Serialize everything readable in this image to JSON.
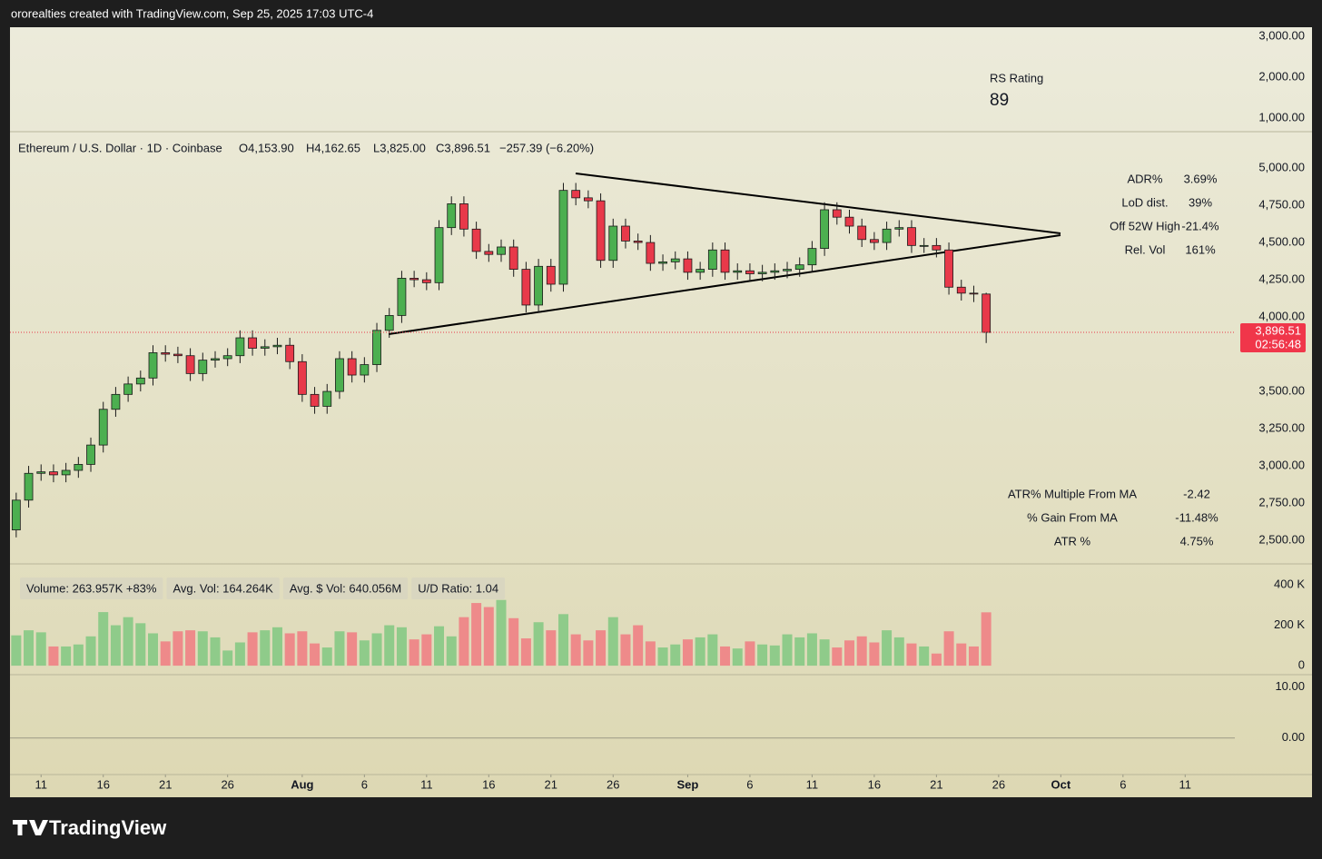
{
  "header": {
    "text": "ororealties created with TradingView.com, Sep 25, 2025 17:03 UTC-4"
  },
  "footer": {
    "logo": "TradingView"
  },
  "legend": {
    "symbol": "Ethereum / U.S. Dollar · 1D · Coinbase",
    "open": "O4,153.90",
    "high": "H4,162.65",
    "low": "L3,825.00",
    "close": "C3,896.51",
    "change": "−257.39 (−6.20%)"
  },
  "price_tag": {
    "price": "3,896.51",
    "timer": "02:56:48"
  },
  "rs": {
    "label": "RS Rating",
    "value": "89"
  },
  "stats_top": [
    [
      "ADR%",
      "3.69%"
    ],
    [
      "LoD dist.",
      "39%"
    ],
    [
      "Off 52W High",
      "-21.4%"
    ],
    [
      "Rel. Vol",
      "161%"
    ]
  ],
  "stats_bottom": [
    [
      "ATR% Multiple From MA",
      "-2.42"
    ],
    [
      "% Gain From MA",
      "-11.48%"
    ],
    [
      "ATR %",
      "4.75%"
    ]
  ],
  "volume_info": [
    "Volume: 263.957K +83%",
    "Avg. Vol: 164.264K",
    "Avg. $ Vol: 640.056M",
    "U/D Ratio: 1.04"
  ],
  "chart_data": [
    {
      "type": "line",
      "ylim": [
        733,
        3222
      ],
      "yticks": [
        {
          "value": 3000,
          "label": "3,000.00"
        },
        {
          "value": 2000,
          "label": "2,000.00"
        },
        {
          "value": 1000,
          "label": "1,000.00"
        }
      ]
    },
    {
      "type": "candlestick",
      "up_color": "#4caf50",
      "down_color": "#e8394a",
      "xlim": [
        -0.5,
        104.2
      ],
      "ylim": [
        2348,
        5226
      ],
      "xticks": [
        {
          "value": 2,
          "label": "11"
        },
        {
          "value": 7,
          "label": "16"
        },
        {
          "value": 12,
          "label": "21"
        },
        {
          "value": 17,
          "label": "26"
        },
        {
          "value": 23,
          "label": "Aug"
        },
        {
          "value": 28,
          "label": "6"
        },
        {
          "value": 33,
          "label": "11"
        },
        {
          "value": 38,
          "label": "16"
        },
        {
          "value": 43,
          "label": "21"
        },
        {
          "value": 48,
          "label": "26"
        },
        {
          "value": 54,
          "label": "Sep"
        },
        {
          "value": 59,
          "label": "6"
        },
        {
          "value": 64,
          "label": "11"
        },
        {
          "value": 69,
          "label": "16"
        },
        {
          "value": 74,
          "label": "21"
        },
        {
          "value": 79,
          "label": "26"
        },
        {
          "value": 84,
          "label": "Oct"
        },
        {
          "value": 89,
          "label": "6"
        },
        {
          "value": 94,
          "label": "11"
        }
      ],
      "yticks": [
        {
          "value": 5000,
          "label": "5,000.00"
        },
        {
          "value": 4750,
          "label": "4,750.00"
        },
        {
          "value": 4500,
          "label": "4,500.00"
        },
        {
          "value": 4250,
          "label": "4,250.00"
        },
        {
          "value": 4000,
          "label": "4,000.00"
        },
        {
          "value": 3500,
          "label": "3,500.00"
        },
        {
          "value": 3250,
          "label": "3,250.00"
        },
        {
          "value": 3000,
          "label": "3,000.00"
        },
        {
          "value": 2750,
          "label": "2,750.00"
        },
        {
          "value": 2500,
          "label": "2,500.00"
        }
      ],
      "open": [
        2570,
        2770,
        2950,
        2960,
        2940,
        2970,
        3010,
        3140,
        3380,
        3480,
        3550,
        3590,
        3760,
        3750,
        3740,
        3620,
        3710,
        3720,
        3740,
        3860,
        3790,
        3800,
        3810,
        3700,
        3480,
        3400,
        3500,
        3720,
        3610,
        3680,
        3910,
        4010,
        4260,
        4250,
        4230,
        4600,
        4760,
        4590,
        4440,
        4420,
        4470,
        4320,
        4080,
        4340,
        4220,
        4850,
        4800,
        4780,
        4380,
        4610,
        4510,
        4500,
        4360,
        4370,
        4390,
        4300,
        4320,
        4450,
        4300,
        4310,
        4290,
        4300,
        4310,
        4320,
        4350,
        4460,
        4720,
        4670,
        4610,
        4520,
        4500,
        4590,
        4600,
        4480,
        4480,
        4450,
        4200,
        4160,
        4153.9
      ],
      "high": [
        2820,
        3000,
        3010,
        3010,
        3020,
        3060,
        3190,
        3430,
        3530,
        3600,
        3640,
        3810,
        3810,
        3800,
        3790,
        3760,
        3770,
        3790,
        3910,
        3910,
        3850,
        3860,
        3860,
        3750,
        3530,
        3550,
        3770,
        3770,
        3730,
        3960,
        4060,
        4310,
        4310,
        4300,
        4650,
        4810,
        4810,
        4640,
        4490,
        4520,
        4520,
        4370,
        4390,
        4390,
        4900,
        4900,
        4850,
        4830,
        4660,
        4660,
        4560,
        4550,
        4420,
        4440,
        4440,
        4370,
        4500,
        4500,
        4360,
        4360,
        4350,
        4360,
        4370,
        4400,
        4510,
        4770,
        4770,
        4720,
        4660,
        4570,
        4640,
        4650,
        4650,
        4530,
        4530,
        4500,
        4250,
        4210,
        4162.65
      ],
      "low": [
        2520,
        2720,
        2900,
        2890,
        2890,
        2920,
        2960,
        3090,
        3330,
        3430,
        3500,
        3540,
        3700,
        3690,
        3570,
        3570,
        3660,
        3670,
        3690,
        3740,
        3740,
        3750,
        3650,
        3430,
        3350,
        3350,
        3450,
        3560,
        3560,
        3630,
        3860,
        3960,
        4200,
        4180,
        4180,
        4550,
        4540,
        4390,
        4370,
        4370,
        4270,
        4030,
        4030,
        4170,
        4170,
        4750,
        4730,
        4330,
        4330,
        4460,
        4450,
        4310,
        4310,
        4320,
        4250,
        4250,
        4270,
        4250,
        4250,
        4240,
        4240,
        4250,
        4260,
        4270,
        4300,
        4410,
        4620,
        4560,
        4470,
        4450,
        4450,
        4540,
        4430,
        4430,
        4400,
        4150,
        4110,
        4100,
        3825
      ],
      "close": [
        2770,
        2950,
        2960,
        2940,
        2970,
        3010,
        3140,
        3380,
        3480,
        3550,
        3590,
        3760,
        3750,
        3740,
        3620,
        3710,
        3720,
        3740,
        3860,
        3790,
        3800,
        3810,
        3700,
        3480,
        3400,
        3500,
        3720,
        3610,
        3680,
        3910,
        4010,
        4260,
        4250,
        4230,
        4600,
        4760,
        4590,
        4440,
        4420,
        4470,
        4320,
        4080,
        4340,
        4220,
        4850,
        4800,
        4780,
        4380,
        4610,
        4510,
        4500,
        4360,
        4370,
        4390,
        4300,
        4320,
        4450,
        4300,
        4310,
        4290,
        4300,
        4310,
        4320,
        4350,
        4460,
        4720,
        4670,
        4610,
        4520,
        4500,
        4590,
        4600,
        4480,
        4480,
        4450,
        4200,
        4160,
        4153.9,
        3896.51
      ]
    },
    {
      "type": "bar",
      "up_color": "#8fcb8a",
      "down_color": "#ee8a8a",
      "ylim": [
        -40,
        499
      ],
      "yticks": [
        {
          "value": 400,
          "label": "400 K"
        },
        {
          "value": 200,
          "label": "200 K"
        },
        0
      ],
      "values": [
        150,
        175,
        165,
        95,
        95,
        105,
        145,
        265,
        200,
        240,
        210,
        160,
        120,
        170,
        175,
        170,
        140,
        75,
        115,
        165,
        175,
        190,
        160,
        170,
        110,
        90,
        170,
        165,
        125,
        160,
        200,
        190,
        130,
        155,
        195,
        145,
        240,
        310,
        290,
        325,
        235,
        135,
        215,
        175,
        255,
        155,
        125,
        175,
        240,
        155,
        200,
        120,
        90,
        105,
        130,
        140,
        155,
        95,
        85,
        120,
        105,
        100,
        155,
        140,
        160,
        130,
        90,
        125,
        145,
        115,
        175,
        140,
        110,
        95,
        60,
        170,
        110,
        95,
        263.957
      ]
    },
    {
      "type": "line",
      "ylim": [
        -7,
        12.1
      ],
      "yticks": [
        {
          "value": 10,
          "label": "10.00"
        },
        {
          "value": 0,
          "label": "0.00"
        }
      ]
    }
  ]
}
